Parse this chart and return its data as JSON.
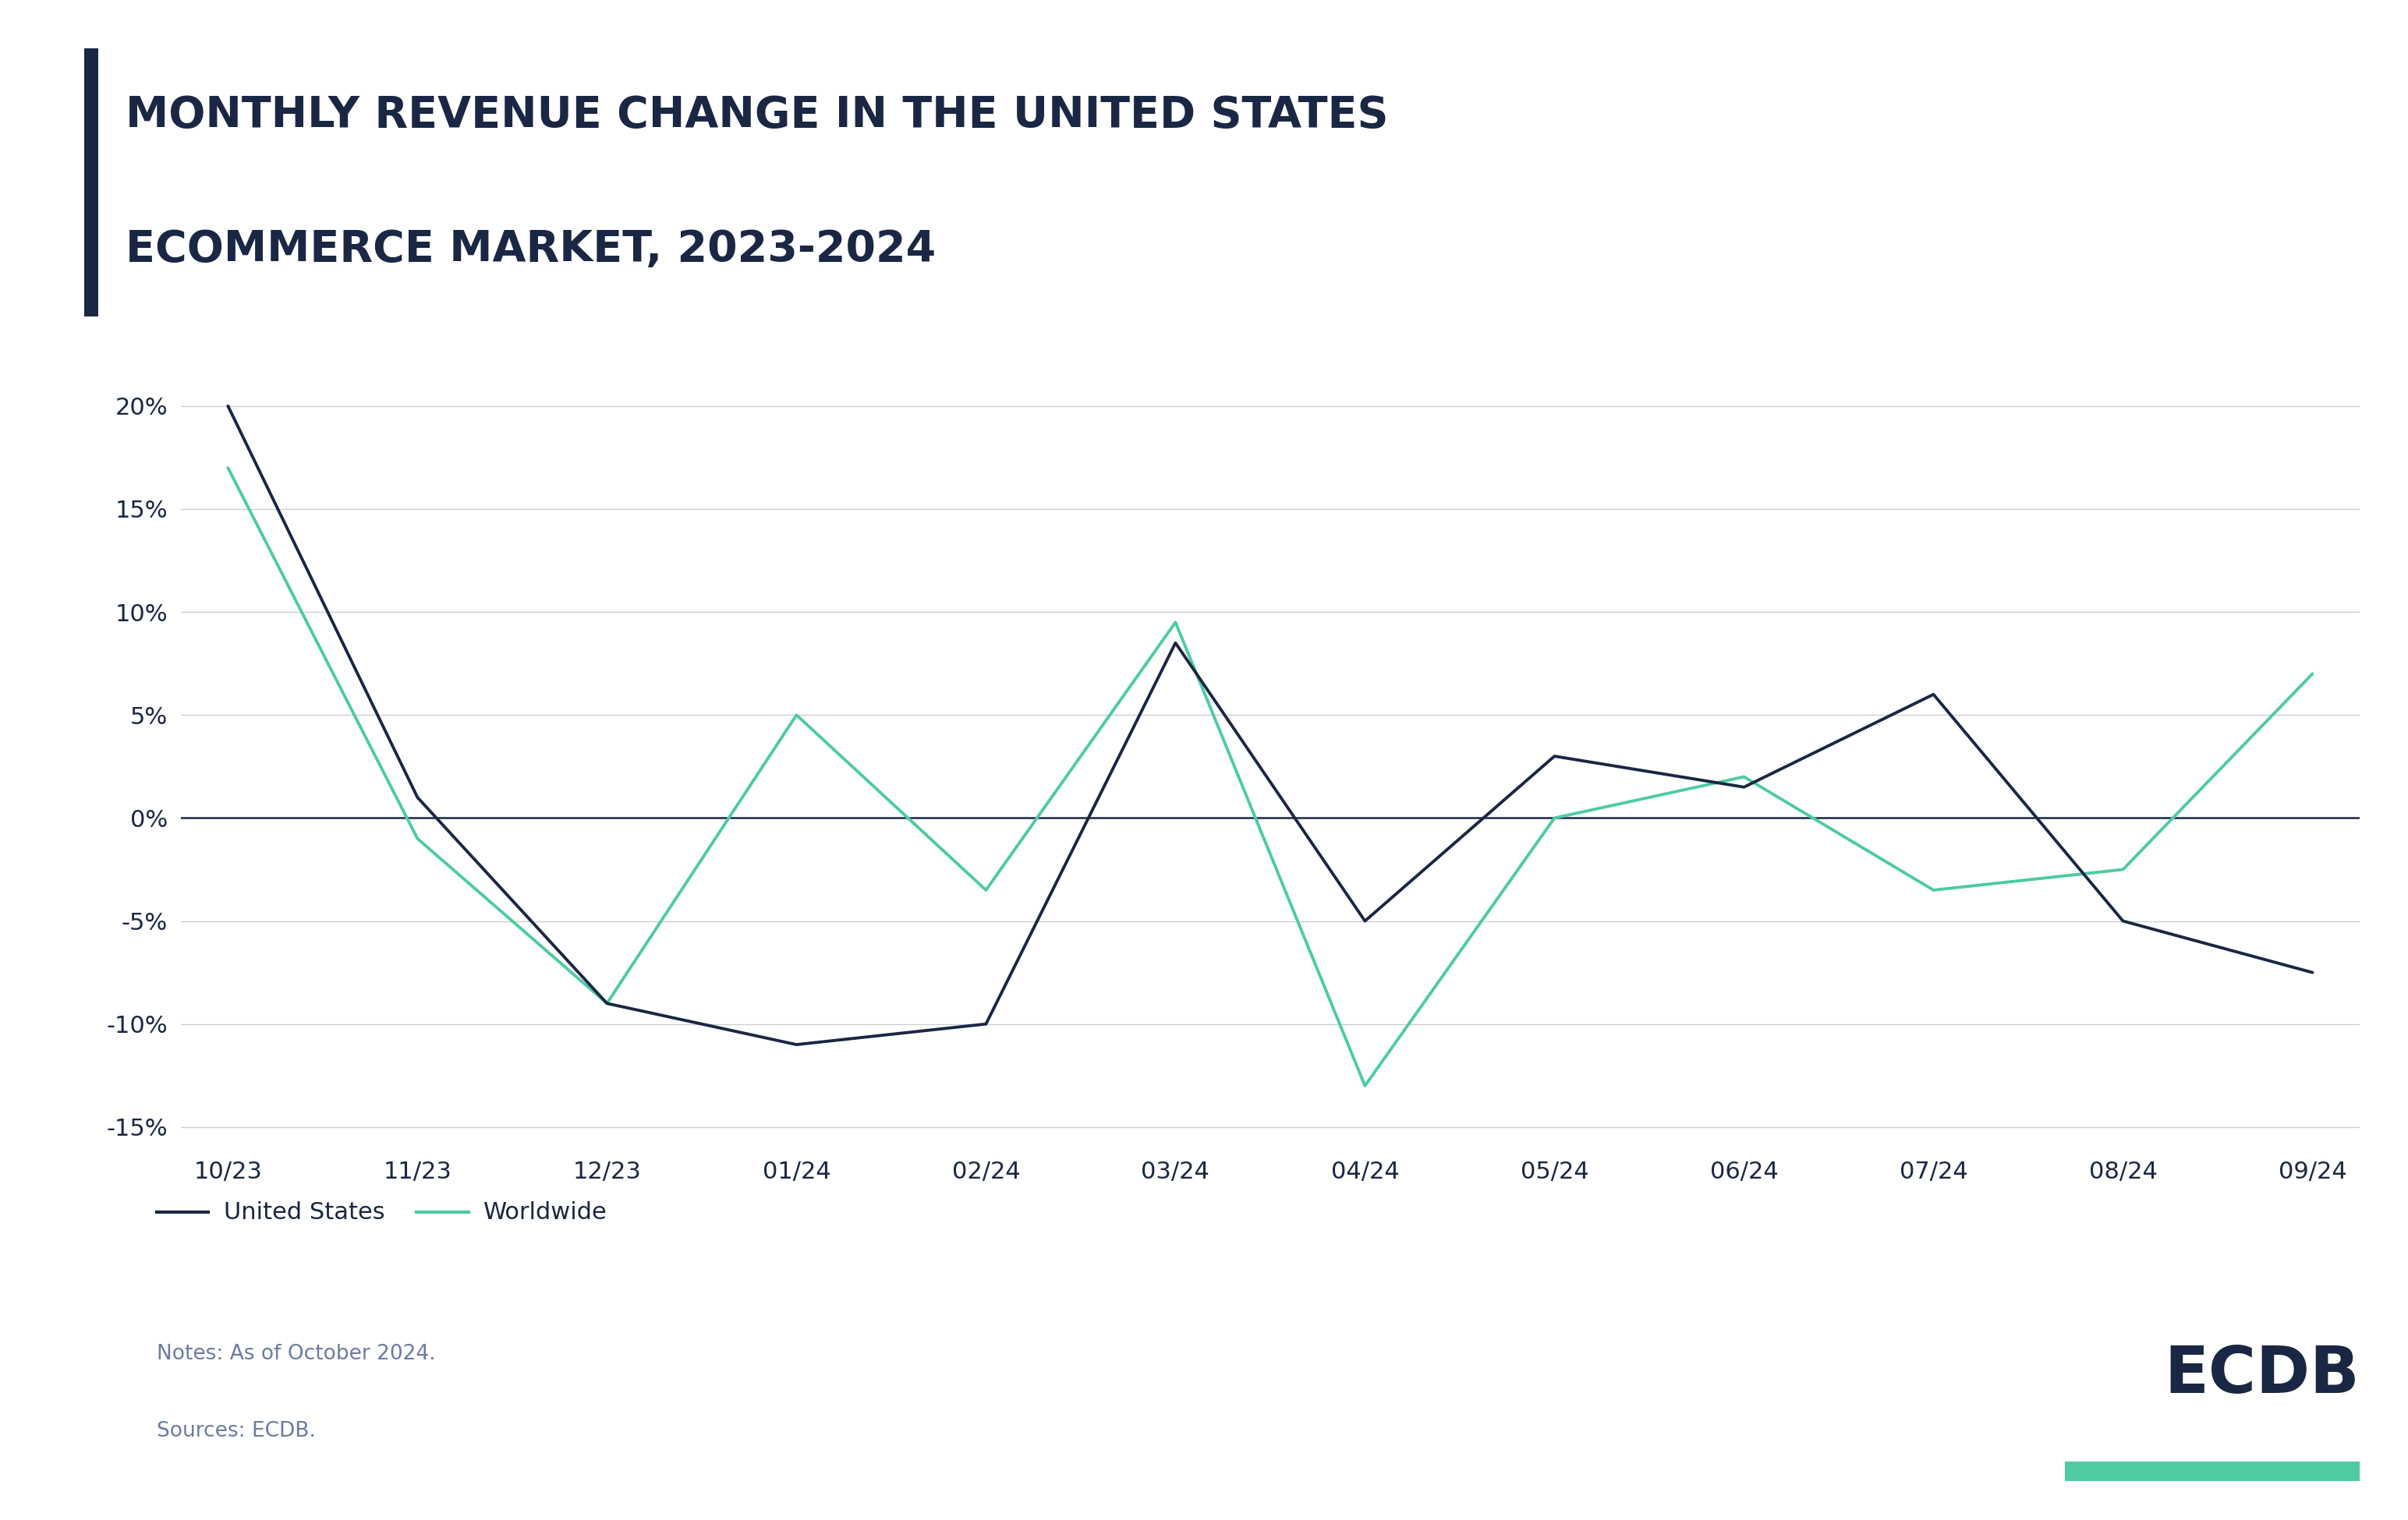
{
  "title_line1": "MONTHLY REVENUE CHANGE IN THE UNITED STATES",
  "title_line2": "ECOMMERCE MARKET, 2023-2024",
  "title_color": "#1a2744",
  "accent_bar_color": "#1a2744",
  "background_color": "#ffffff",
  "categories": [
    "10/23",
    "11/23",
    "12/23",
    "01/24",
    "02/24",
    "03/24",
    "04/24",
    "05/24",
    "06/24",
    "07/24",
    "08/24",
    "09/24"
  ],
  "us_values": [
    20,
    1,
    -9,
    -11,
    -10,
    8.5,
    -5,
    3,
    1.5,
    6,
    -5,
    -7.5
  ],
  "worldwide_values": [
    17,
    -1,
    -9,
    5,
    -3.5,
    9.5,
    -13,
    0,
    2,
    -3.5,
    -2.5,
    7
  ],
  "us_color": "#1a2744",
  "worldwide_color": "#4ecba3",
  "us_label": "United States",
  "worldwide_label": "Worldwide",
  "ylim": [
    -16,
    22
  ],
  "yticks": [
    -15,
    -10,
    -5,
    0,
    5,
    10,
    15,
    20
  ],
  "ytick_labels": [
    "-15%",
    "-10%",
    "-5%",
    "0%",
    "5%",
    "10%",
    "15%",
    "20%"
  ],
  "zero_line_color": "#1a2744",
  "grid_color": "#cccccc",
  "notes": "Notes: As of October 2024.",
  "sources": "Sources: ECDB.",
  "ecdb_text": "ECDB",
  "ecdb_underline_color": "#4ecba3",
  "notes_color": "#6b7ba4",
  "tick_color": "#1a2744",
  "line_width": 2.8
}
